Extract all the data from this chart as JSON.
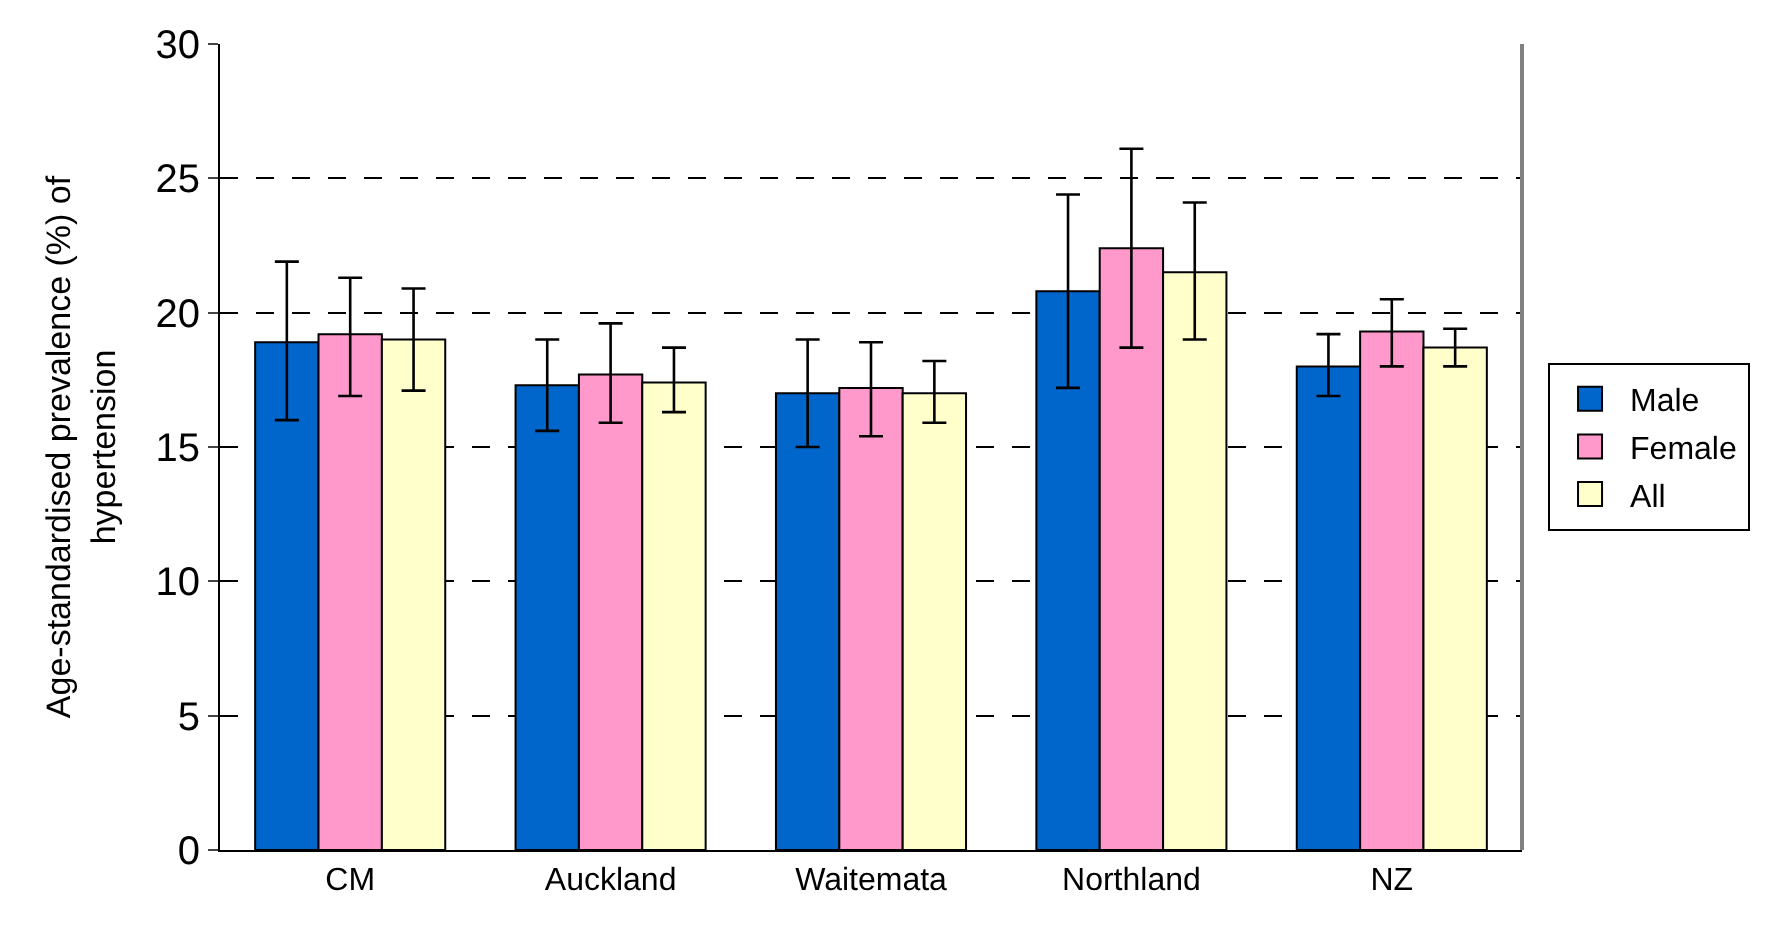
{
  "chart_data": {
    "type": "bar",
    "ylabel": "Age-standardised prevalence (%) of\nhypertension",
    "categories": [
      "CM",
      "Auckland",
      "Waitemata",
      "Northland",
      "NZ"
    ],
    "series": [
      {
        "name": "Male",
        "color": "#0066cc",
        "values": [
          18.9,
          17.3,
          17.0,
          20.8,
          18.0
        ],
        "errors": [
          [
            16.0,
            21.9
          ],
          [
            15.6,
            19.0
          ],
          [
            15.0,
            19.0
          ],
          [
            17.2,
            24.4
          ],
          [
            16.9,
            19.2
          ]
        ]
      },
      {
        "name": "Female",
        "color": "#ff99cc",
        "values": [
          19.2,
          17.7,
          17.2,
          22.4,
          19.3
        ],
        "errors": [
          [
            16.9,
            21.3
          ],
          [
            15.9,
            19.6
          ],
          [
            15.4,
            18.9
          ],
          [
            18.7,
            26.1
          ],
          [
            18.0,
            20.5
          ]
        ]
      },
      {
        "name": "All",
        "color": "#ffffcc",
        "values": [
          19.0,
          17.4,
          17.0,
          21.5,
          18.7
        ],
        "errors": [
          [
            17.1,
            20.9
          ],
          [
            16.3,
            18.7
          ],
          [
            15.9,
            18.2
          ],
          [
            19.0,
            24.1
          ],
          [
            18.0,
            19.4
          ]
        ]
      }
    ],
    "ylim": [
      0,
      30
    ],
    "yticks": [
      0,
      5,
      10,
      15,
      20,
      25,
      30
    ],
    "grid": "y",
    "legend": "right"
  }
}
